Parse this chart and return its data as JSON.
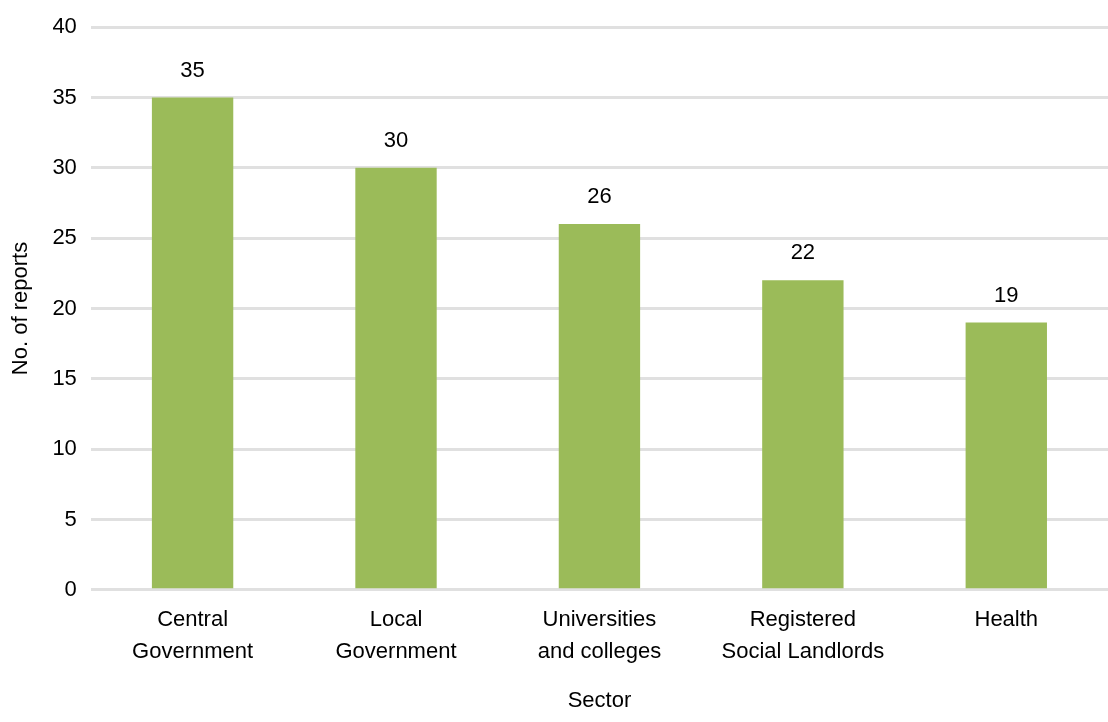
{
  "chart_data": {
    "type": "bar",
    "xlabel": "Sector",
    "ylabel": "No. of reports",
    "categories": [
      "Central\nGovernment",
      "Local\nGovernment",
      "Universities\nand colleges",
      "Registered\nSocial Landlords",
      "Health"
    ],
    "values": [
      35,
      30,
      26,
      22,
      19
    ],
    "color": "#9bbb59",
    "ylim": [
      0,
      40
    ],
    "yticks": [
      0,
      5,
      10,
      15,
      20,
      25,
      30,
      35,
      40
    ],
    "grid": "y",
    "data_labels": true,
    "legend": false
  }
}
